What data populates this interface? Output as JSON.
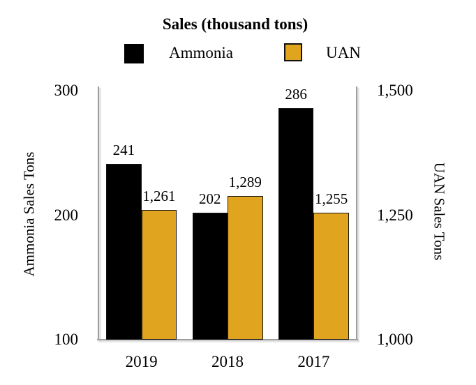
{
  "title": "Sales (thousand tons)",
  "legend": {
    "items": [
      {
        "label": "Ammonia",
        "color": "#000000"
      },
      {
        "label": "UAN",
        "color": "#E1A41E"
      }
    ]
  },
  "axes": {
    "left": {
      "title": "Ammonia Sales Tons",
      "ticks": [
        "300",
        "200",
        "100"
      ],
      "range": [
        100,
        300
      ]
    },
    "right": {
      "title": "UAN Sales Tons",
      "ticks": [
        "1,500",
        "1,250",
        "1,000"
      ],
      "range": [
        1000,
        1500
      ]
    },
    "x": {
      "categories": [
        "2019",
        "2018",
        "2017"
      ]
    }
  },
  "chart_data": {
    "type": "bar",
    "title": "Sales (thousand tons)",
    "categories": [
      "2019",
      "2018",
      "2017"
    ],
    "series": [
      {
        "name": "Ammonia",
        "axis": "left",
        "color": "#000000",
        "values": [
          241,
          202,
          286
        ],
        "labels": [
          "241",
          "202",
          "286"
        ]
      },
      {
        "name": "UAN",
        "axis": "right",
        "color": "#E1A41E",
        "values": [
          1261,
          1289,
          1255
        ],
        "labels": [
          "1,261",
          "1,289",
          "1,255"
        ]
      }
    ],
    "left_ylabel": "Ammonia Sales Tons",
    "right_ylabel": "UAN Sales Tons",
    "left_ylim": [
      100,
      300
    ],
    "right_ylim": [
      1000,
      1500
    ],
    "left_ticks": [
      300,
      200,
      100
    ],
    "right_ticks": [
      1500,
      1250,
      1000
    ],
    "grid": false,
    "legend_position": "top",
    "axis_line_color": "#9d9d9d",
    "data_labels_visible": true
  }
}
